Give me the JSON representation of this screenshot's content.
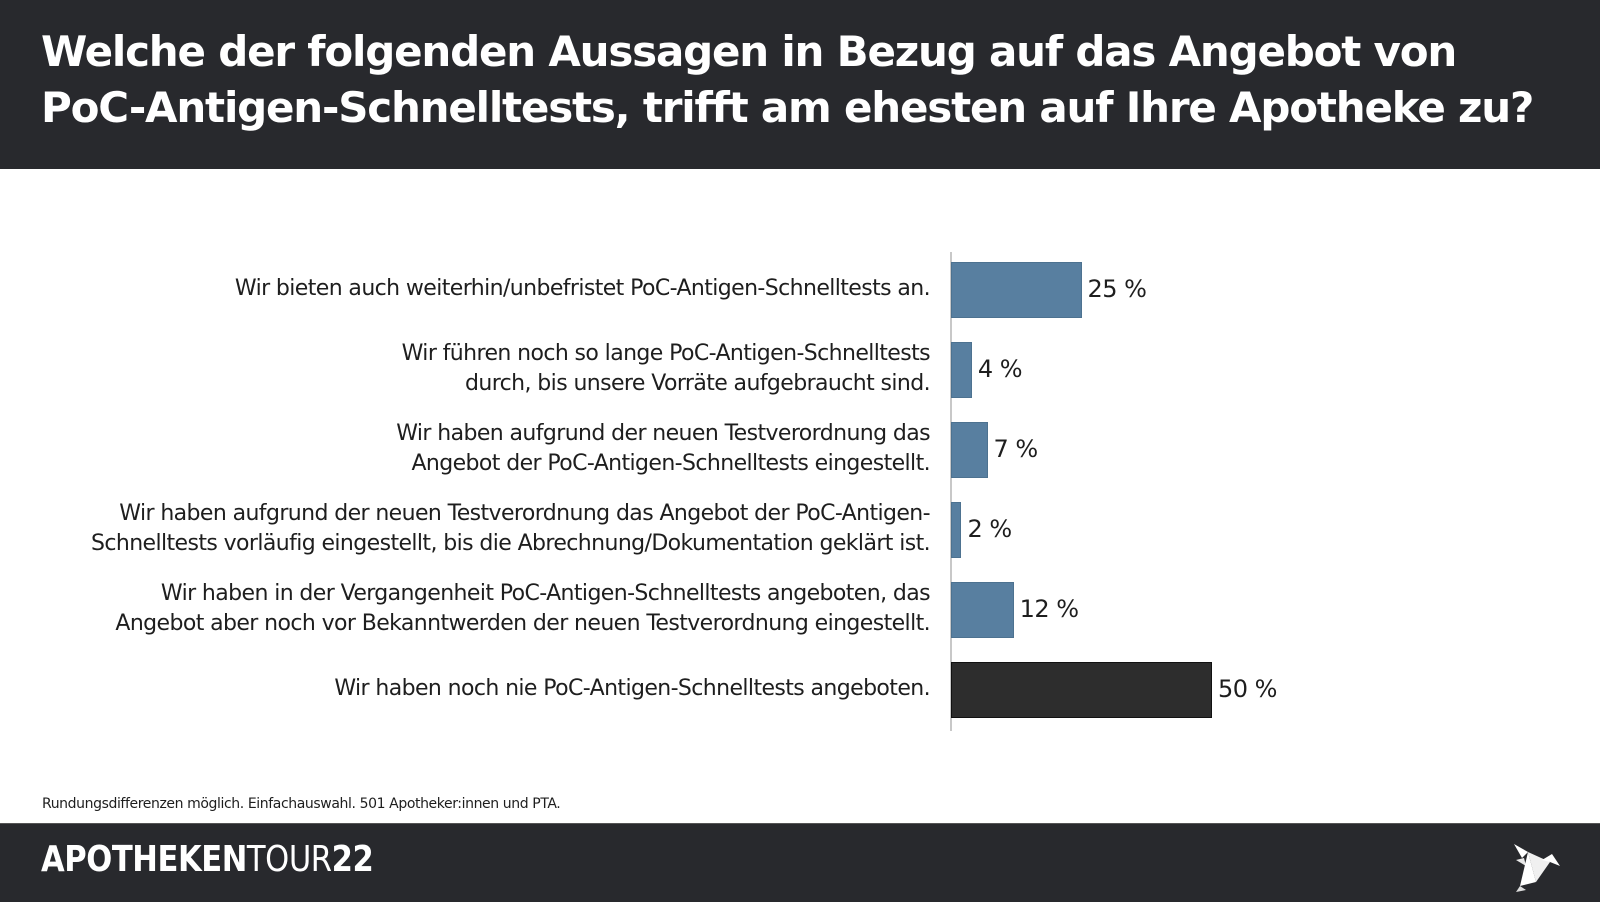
{
  "header": {
    "title": "Welche der folgenden Aussagen in Bezug auf das Angebot von PoC-Antigen-Schnelltests, trifft am ehesten auf Ihre Apotheke zu?"
  },
  "chart_data": {
    "type": "bar",
    "orientation": "horizontal",
    "title": "Welche der folgenden Aussagen in Bezug auf das Angebot von PoC-Antigen-Schnelltests, trifft am ehesten auf Ihre Apotheke zu?",
    "xlabel": "",
    "ylabel": "",
    "xlim": [
      0,
      50
    ],
    "grid": false,
    "unit": "%",
    "categories": [
      [
        "Wir bieten auch weiterhin/unbefristet PoC-Antigen-Schnelltests an."
      ],
      [
        "Wir führen noch so lange PoC-Antigen-Schnelltests",
        "durch, bis unsere Vorräte aufgebraucht sind."
      ],
      [
        "Wir haben aufgrund der neuen Testverordnung das",
        "Angebot der PoC-Antigen-Schnelltests eingestellt."
      ],
      [
        "Wir haben aufgrund der neuen Testverordnung das Angebot der PoC-Antigen-",
        "Schnelltests vorläufig eingestellt, bis die Abrechnung/Dokumentation geklärt ist."
      ],
      [
        "Wir haben in der Vergangenheit PoC-Antigen-Schnelltests angeboten, das",
        "Angebot aber noch vor Bekanntwerden der neuen Testverordnung eingestellt."
      ],
      [
        "Wir haben noch nie PoC-Antigen-Schnelltests angeboten."
      ]
    ],
    "values": [
      25,
      4,
      7,
      2,
      12,
      50
    ],
    "value_labels": [
      "25 %",
      "4 %",
      "7 %",
      "2 %",
      "12 %",
      "50 %"
    ],
    "bar_colors": [
      "#587fa0",
      "#587fa0",
      "#587fa0",
      "#587fa0",
      "#587fa0",
      "#2d2d2d"
    ]
  },
  "footnote": "Rundungsdifferenzen möglich. Einfachauswahl. 501 Apotheker:innen und PTA.",
  "footer": {
    "brand_part1": "APOTHEKEN",
    "brand_part2": "TOUR",
    "brand_part3": "22",
    "logo_icon": "origami-bird-icon"
  },
  "colors": {
    "header_bg": "#28292d",
    "bar_blue": "#587fa0",
    "bar_dark": "#2d2d2d"
  }
}
